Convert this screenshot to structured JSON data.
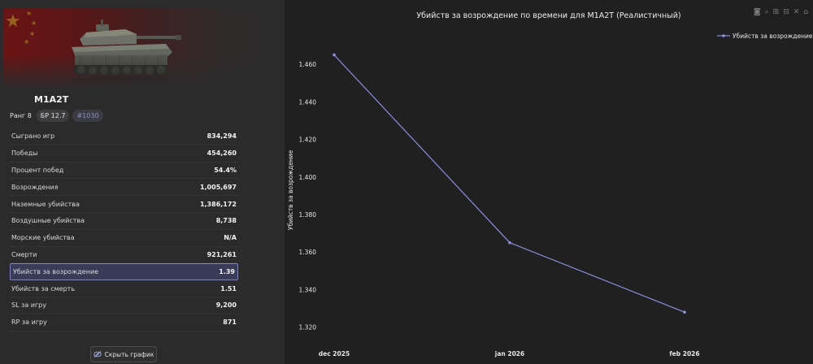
{
  "vehicle": {
    "name": "M1A2T",
    "rank": "Ранг 8",
    "br": "БР 12.7",
    "id_badge": "#1030"
  },
  "stats": [
    {
      "label": "Сыграно игр",
      "value": "834,294"
    },
    {
      "label": "Победы",
      "value": "454,260"
    },
    {
      "label": "Процент побед",
      "value": "54.4%"
    },
    {
      "label": "Возрождения",
      "value": "1,005,697"
    },
    {
      "label": "Наземные убийства",
      "value": "1,386,172"
    },
    {
      "label": "Воздушные убийства",
      "value": "8,738"
    },
    {
      "label": "Морские убийства",
      "value": "N/A"
    },
    {
      "label": "Смерти",
      "value": "921,261"
    },
    {
      "label": "Убийств за возрождение",
      "value": "1.39",
      "active": true
    },
    {
      "label": "Убийств за смерть",
      "value": "1.51"
    },
    {
      "label": "SL за игру",
      "value": "9,200"
    },
    {
      "label": "RP за игру",
      "value": "871"
    }
  ],
  "hide_button": {
    "label": "Скрыть график",
    "icon": "eye-off-icon"
  },
  "modebar": [
    "camera-icon",
    "zoom-icon",
    "zoom-in-icon",
    "zoom-out-icon",
    "autoscale-icon",
    "home-icon"
  ],
  "colors": {
    "series": "#8b90e0",
    "active_row_bg": "#393c58",
    "active_row_border": "#7b80c8"
  },
  "chart_data": {
    "type": "line",
    "title": "Убийств за возрождение по времени для M1A2T (Реалистичный)",
    "ylabel": "Убийств за возрождение",
    "xlabel": "",
    "x": [
      "dec 2025",
      "jan 2026",
      "feb 2026"
    ],
    "series": [
      {
        "name": "Убийств за возрождение",
        "values": [
          1.465,
          1.365,
          1.328
        ]
      }
    ],
    "ylim": [
      1.3125,
      1.4735
    ],
    "yticks": [
      1.32,
      1.34,
      1.36,
      1.38,
      1.4,
      1.42,
      1.44,
      1.46
    ],
    "ytick_labels": [
      "1.320",
      "1.340",
      "1.360",
      "1.380",
      "1.400",
      "1.420",
      "1.440",
      "1.460"
    ],
    "grid": false,
    "legend": "top-right"
  }
}
